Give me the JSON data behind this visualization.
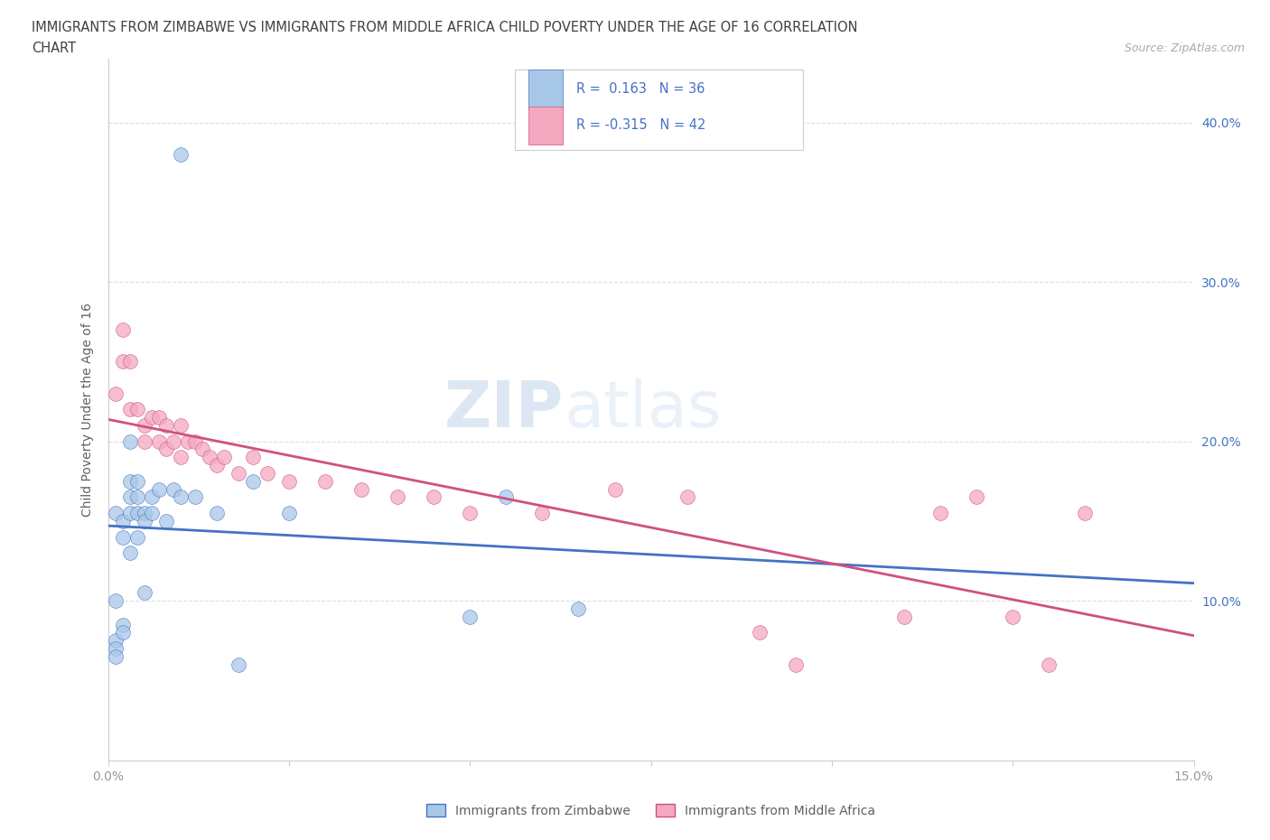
{
  "title_line1": "IMMIGRANTS FROM ZIMBABWE VS IMMIGRANTS FROM MIDDLE AFRICA CHILD POVERTY UNDER THE AGE OF 16 CORRELATION",
  "title_line2": "CHART",
  "source_text": "Source: ZipAtlas.com",
  "ylabel": "Child Poverty Under the Age of 16",
  "xlim": [
    0.0,
    0.15
  ],
  "ylim": [
    0.0,
    0.44
  ],
  "yticks": [
    0.1,
    0.2,
    0.3,
    0.4
  ],
  "xticks": [
    0.0,
    0.025,
    0.05,
    0.075,
    0.1,
    0.125,
    0.15
  ],
  "color_zimbabwe": "#a8c8e8",
  "color_middle_africa": "#f4a8c0",
  "line_color_zimbabwe": "#4472c4",
  "line_color_middle_africa": "#d05080",
  "R_zimbabwe": 0.163,
  "N_zimbabwe": 36,
  "R_middle_africa": -0.315,
  "N_middle_africa": 42,
  "legend_label_zimbabwe": "Immigrants from Zimbabwe",
  "legend_label_middle_africa": "Immigrants from Middle Africa",
  "zimbabwe_x": [
    0.001,
    0.001,
    0.001,
    0.001,
    0.001,
    0.002,
    0.002,
    0.002,
    0.002,
    0.003,
    0.003,
    0.003,
    0.003,
    0.003,
    0.004,
    0.004,
    0.004,
    0.004,
    0.005,
    0.005,
    0.005,
    0.006,
    0.006,
    0.007,
    0.008,
    0.009,
    0.01,
    0.012,
    0.015,
    0.018,
    0.02,
    0.025,
    0.05,
    0.055,
    0.065,
    0.01
  ],
  "zimbabwe_y": [
    0.155,
    0.1,
    0.075,
    0.07,
    0.065,
    0.15,
    0.14,
    0.085,
    0.08,
    0.2,
    0.175,
    0.165,
    0.155,
    0.13,
    0.175,
    0.165,
    0.155,
    0.14,
    0.155,
    0.15,
    0.105,
    0.165,
    0.155,
    0.17,
    0.15,
    0.17,
    0.165,
    0.165,
    0.155,
    0.06,
    0.175,
    0.155,
    0.09,
    0.165,
    0.095,
    0.38
  ],
  "middle_africa_x": [
    0.001,
    0.002,
    0.002,
    0.003,
    0.003,
    0.004,
    0.005,
    0.005,
    0.006,
    0.007,
    0.007,
    0.008,
    0.008,
    0.009,
    0.01,
    0.01,
    0.011,
    0.012,
    0.013,
    0.014,
    0.015,
    0.016,
    0.018,
    0.02,
    0.022,
    0.025,
    0.03,
    0.035,
    0.04,
    0.045,
    0.05,
    0.06,
    0.07,
    0.08,
    0.09,
    0.095,
    0.11,
    0.115,
    0.12,
    0.125,
    0.13,
    0.135
  ],
  "middle_africa_y": [
    0.23,
    0.27,
    0.25,
    0.22,
    0.25,
    0.22,
    0.21,
    0.2,
    0.215,
    0.2,
    0.215,
    0.195,
    0.21,
    0.2,
    0.21,
    0.19,
    0.2,
    0.2,
    0.195,
    0.19,
    0.185,
    0.19,
    0.18,
    0.19,
    0.18,
    0.175,
    0.175,
    0.17,
    0.165,
    0.165,
    0.155,
    0.155,
    0.17,
    0.165,
    0.08,
    0.06,
    0.09,
    0.155,
    0.165,
    0.09,
    0.06,
    0.155
  ],
  "watermark_zip": "ZIP",
  "watermark_atlas": "atlas",
  "background_color": "#ffffff",
  "grid_color": "#dddddd",
  "title_color": "#404040",
  "axis_label_color": "#606060",
  "tick_color": "#999999"
}
